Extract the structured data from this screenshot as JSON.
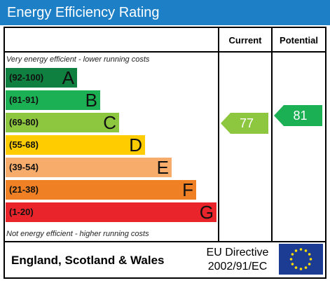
{
  "title": "Energy Efficiency Rating",
  "headers": {
    "current": "Current",
    "potential": "Potential"
  },
  "top_note": "Very energy efficient - lower running costs",
  "bottom_note": "Not energy efficient - higher running costs",
  "footer": {
    "region": "England, Scotland & Wales",
    "directive_line1": "EU Directive",
    "directive_line2": "2002/91/EC"
  },
  "chart_data": {
    "type": "bar",
    "categories": [
      "A",
      "B",
      "C",
      "D",
      "E",
      "F",
      "G"
    ],
    "ranges": [
      "(92-100)",
      "(81-91)",
      "(69-80)",
      "(55-68)",
      "(39-54)",
      "(21-38)",
      "(1-20)"
    ],
    "colors": [
      "#0f8040",
      "#1bb054",
      "#8dc63f",
      "#ffcc00",
      "#f7ac6b",
      "#ef8023",
      "#e9242a"
    ],
    "current": {
      "value": 77,
      "color": "#8dc63f"
    },
    "potential": {
      "value": 81,
      "color": "#1bb054"
    }
  }
}
